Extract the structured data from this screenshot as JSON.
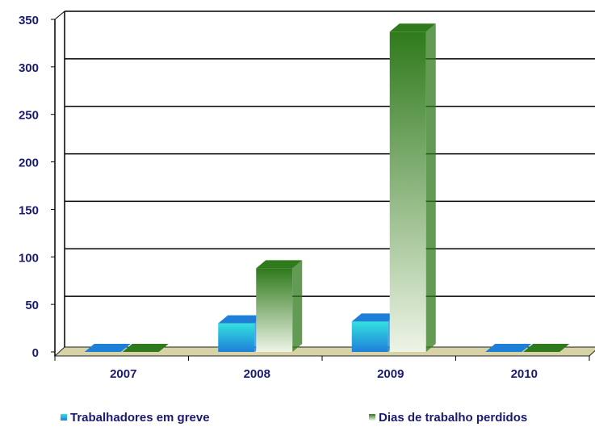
{
  "chart_data": {
    "type": "bar3d",
    "categories": [
      "2007",
      "2008",
      "2009",
      "2010"
    ],
    "series": [
      {
        "name": "Trabalhadores em greve",
        "color": "#1e7fd8",
        "values": [
          0,
          30,
          32,
          0
        ]
      },
      {
        "name": "Dias de trabalho perdidos",
        "color": "#2f7a1c",
        "values": [
          0,
          88,
          337,
          0
        ]
      }
    ],
    "ylim": [
      0,
      350
    ],
    "yticks": [
      0,
      50,
      100,
      150,
      200,
      250,
      300,
      350
    ],
    "grid": true
  }
}
